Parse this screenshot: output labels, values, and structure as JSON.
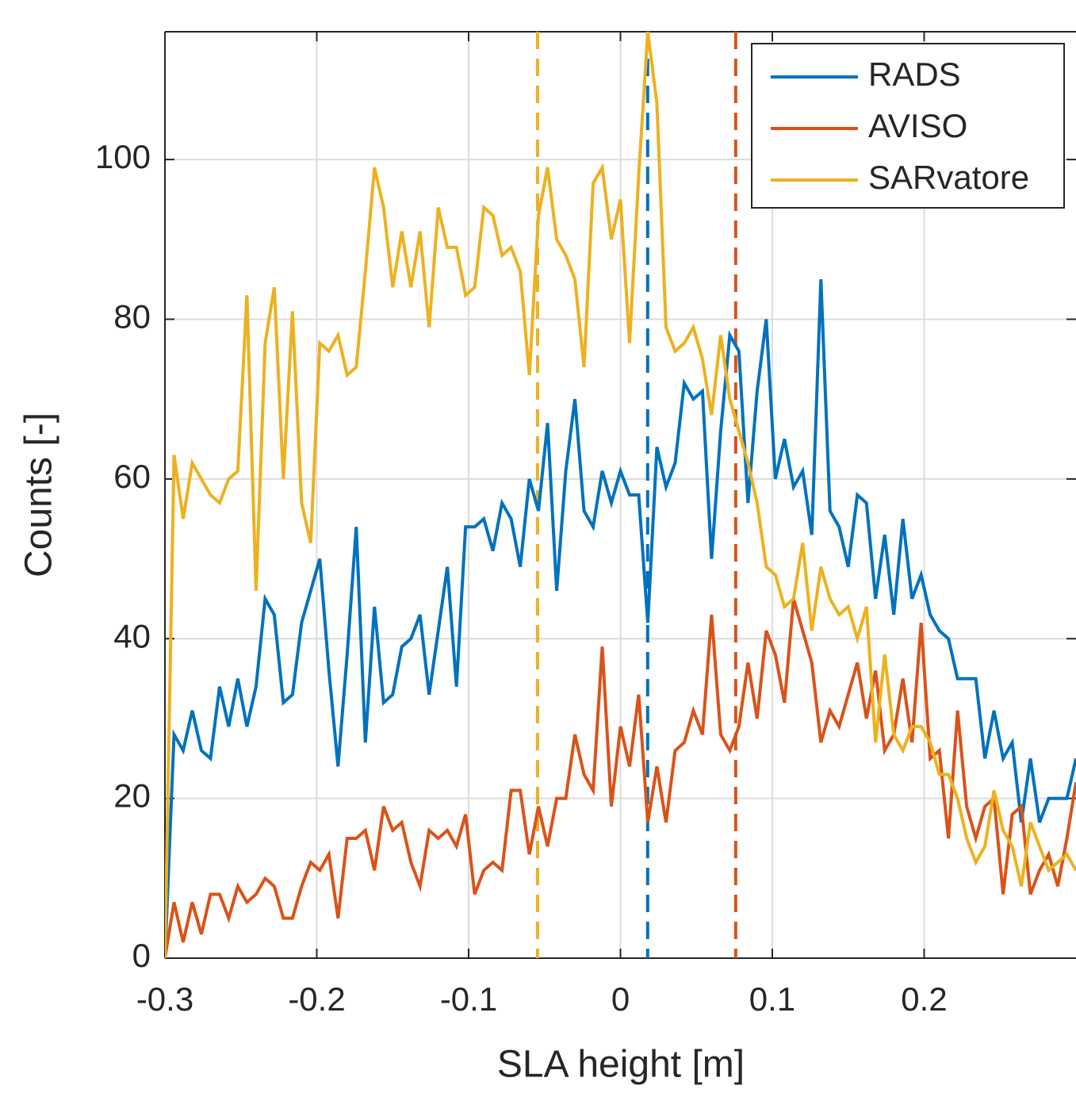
{
  "chart_data": {
    "type": "line",
    "xlabel": "SLA height [m]",
    "ylabel": "Counts [-]",
    "xlim": [
      -0.3,
      0.3
    ],
    "ylim": [
      0,
      116
    ],
    "xticks": [
      -0.3,
      -0.2,
      -0.1,
      0,
      0.1,
      0.2
    ],
    "yticks": [
      0,
      20,
      40,
      60,
      80,
      100
    ],
    "grid": true,
    "legend": "top-right",
    "x": [
      -0.3,
      -0.294,
      -0.288,
      -0.282,
      -0.276,
      -0.27,
      -0.264,
      -0.258,
      -0.252,
      -0.246,
      -0.24,
      -0.234,
      -0.228,
      -0.222,
      -0.216,
      -0.21,
      -0.204,
      -0.198,
      -0.192,
      -0.186,
      -0.18,
      -0.174,
      -0.168,
      -0.162,
      -0.156,
      -0.15,
      -0.144,
      -0.138,
      -0.132,
      -0.126,
      -0.12,
      -0.114,
      -0.108,
      -0.102,
      -0.096,
      -0.09,
      -0.084,
      -0.078,
      -0.072,
      -0.066,
      -0.06,
      -0.054,
      -0.048,
      -0.042,
      -0.036,
      -0.03,
      -0.024,
      -0.018,
      -0.012,
      -0.006,
      0,
      0.006,
      0.012,
      0.018,
      0.024,
      0.03,
      0.036,
      0.042,
      0.048,
      0.054,
      0.06,
      0.066,
      0.072,
      0.078,
      0.084,
      0.09,
      0.096,
      0.102,
      0.108,
      0.114,
      0.12,
      0.126,
      0.132,
      0.138,
      0.144,
      0.15,
      0.156,
      0.162,
      0.168,
      0.174,
      0.18,
      0.186,
      0.192,
      0.198,
      0.204,
      0.21,
      0.216,
      0.222,
      0.228,
      0.234,
      0.24,
      0.246,
      0.252,
      0.258,
      0.264,
      0.27,
      0.276,
      0.282,
      0.288,
      0.294,
      0.3
    ],
    "series": [
      {
        "name": "RADS",
        "color": "#0072bd",
        "values": [
          0,
          28,
          26,
          31,
          26,
          25,
          34,
          29,
          35,
          29,
          34,
          45,
          43,
          32,
          33,
          42,
          46,
          50,
          36,
          24,
          38,
          54,
          27,
          44,
          32,
          33,
          39,
          40,
          43,
          33,
          41,
          49,
          34,
          54,
          54,
          55,
          51,
          57,
          55,
          49,
          60,
          56,
          67,
          46,
          61,
          70,
          56,
          54,
          61,
          57,
          61,
          58,
          58,
          42,
          64,
          59,
          62,
          72,
          70,
          71,
          50,
          66,
          78,
          76,
          57,
          71,
          80,
          60,
          65,
          59,
          61,
          53,
          85,
          56,
          54,
          49,
          58,
          57,
          45,
          53,
          43,
          55,
          45,
          48,
          43,
          41,
          40,
          35,
          35,
          35,
          25,
          31,
          25,
          27,
          17,
          25,
          17,
          20,
          20,
          20,
          25
        ]
      },
      {
        "name": "AVISO",
        "color": "#d95319",
        "values": [
          0,
          7,
          2,
          7,
          3,
          8,
          8,
          5,
          9,
          7,
          8,
          10,
          9,
          5,
          5,
          9,
          12,
          11,
          13,
          5,
          15,
          15,
          16,
          11,
          19,
          16,
          17,
          12,
          9,
          16,
          15,
          16,
          14,
          18,
          8,
          11,
          12,
          11,
          21,
          21,
          13,
          19,
          14,
          20,
          20,
          28,
          23,
          21,
          39,
          19,
          29,
          24,
          33,
          17,
          24,
          17,
          26,
          27,
          31,
          28,
          43,
          28,
          26,
          29,
          37,
          30,
          41,
          38,
          32,
          45,
          41,
          37,
          27,
          31,
          29,
          33,
          37,
          30,
          36,
          26,
          28,
          35,
          27,
          42,
          25,
          26,
          15,
          31,
          19,
          15,
          19,
          20,
          8,
          18,
          19,
          8,
          11,
          13,
          9,
          15,
          22
        ]
      },
      {
        "name": "SARvatore",
        "color": "#edb120",
        "values": [
          0,
          63,
          55,
          62,
          60,
          58,
          57,
          60,
          61,
          83,
          46,
          77,
          84,
          60,
          81,
          57,
          52,
          77,
          76,
          78,
          73,
          74,
          86,
          99,
          94,
          84,
          91,
          84,
          91,
          79,
          94,
          89,
          89,
          83,
          84,
          94,
          93,
          88,
          89,
          86,
          73,
          93,
          99,
          90,
          88,
          85,
          74,
          97,
          99,
          90,
          95,
          77,
          98,
          116,
          107,
          79,
          76,
          77,
          79,
          75,
          68,
          78,
          70,
          66,
          62,
          57,
          49,
          48,
          44,
          45,
          52,
          41,
          49,
          45,
          43,
          44,
          40,
          44,
          27,
          38,
          28,
          26,
          29,
          29,
          27,
          23,
          23,
          20,
          15,
          12,
          14,
          21,
          16,
          14,
          9,
          17,
          14,
          11,
          12,
          13,
          11
        ]
      }
    ],
    "vlines": [
      {
        "x": -0.0546,
        "color": "#edb120"
      },
      {
        "x": 0.0179,
        "color": "#0072bd"
      },
      {
        "x": 0.0759,
        "color": "#d95319"
      }
    ]
  }
}
